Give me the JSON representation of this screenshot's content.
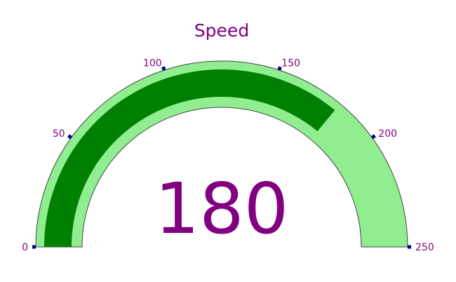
{
  "chart_data": {
    "type": "gauge",
    "title": "Speed",
    "value": 180,
    "value_text": "180",
    "range": [
      0,
      250
    ],
    "ticks": [
      0,
      50,
      100,
      150,
      200,
      250
    ],
    "tick_labels": [
      "0",
      "50",
      "100",
      "150",
      "200",
      "250"
    ],
    "colors": {
      "text": "#800080",
      "track": "#90ee90",
      "bar": "#008000",
      "outline": "#444444",
      "tick_mark": "#00008b"
    }
  }
}
